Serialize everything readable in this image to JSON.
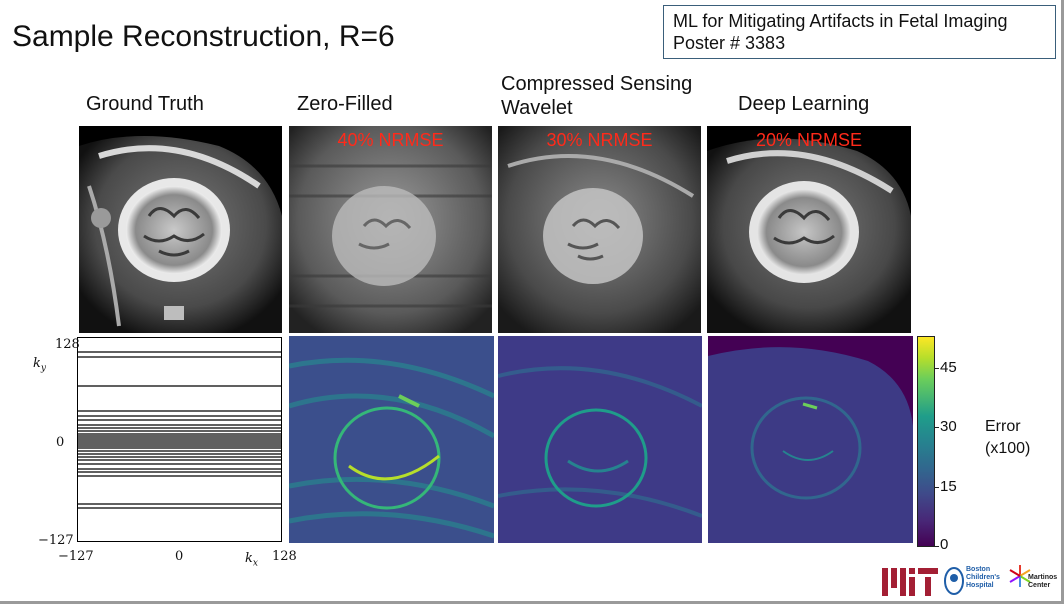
{
  "title": "Sample Reconstruction, R=6",
  "poster": {
    "line1": "ML for Mitigating Artifacts in Fetal Imaging",
    "line2": "Poster # 3383"
  },
  "columns": [
    {
      "label": "Ground Truth"
    },
    {
      "label": "Zero-Filled",
      "nrmse": "40% NRMSE"
    },
    {
      "label_line1": "Compressed Sensing",
      "label_line2": "Wavelet",
      "nrmse": "30% NRMSE"
    },
    {
      "label": "Deep Learning",
      "nrmse": "20% NRMSE"
    }
  ],
  "mask_axes": {
    "ky_top": "128",
    "ky_zero": "0",
    "ky_bottom": "−127",
    "kx_left": "−127",
    "kx_zero": "0",
    "kx_right": "128",
    "ky_label": "k",
    "ky_sub": "y",
    "kx_label": "k",
    "kx_sub": "x"
  },
  "colorbar": {
    "ticks": [
      "45",
      "30",
      "15",
      "0"
    ],
    "label_line1": "Error",
    "label_line2": "(x100)"
  },
  "logos": {
    "boston_line1": "Boston",
    "boston_line2": "Children's",
    "boston_line3": "Hospital",
    "martinos_line1": "Martinos",
    "martinos_line2": "Center"
  },
  "colors": {
    "nrmse": "#ff2a1a",
    "border": "#3a5e7a"
  }
}
